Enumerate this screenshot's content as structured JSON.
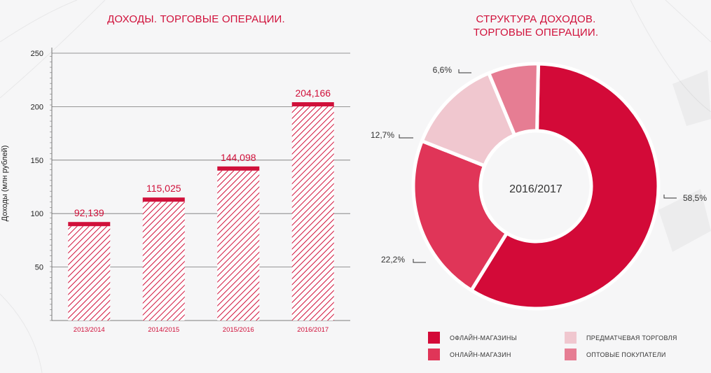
{
  "colors": {
    "accent": "#d0103a",
    "offline": "#d30a38",
    "online": "#e03558",
    "matchday": "#f0c7cf",
    "wholesale": "#e67d93"
  },
  "bar_chart": {
    "title": "ДОХОДЫ. ТОРГОВЫЕ ОПЕРАЦИИ.",
    "ylabel": "Доходы (млн рублей)"
  },
  "donut_chart": {
    "title": "СТРУКТУРА ДОХОДОВ.\nТОРГОВЫЕ ОПЕРАЦИИ.",
    "center_label": "2016/2017"
  },
  "legend": [
    {
      "label": "ОФЛАЙН-МАГАЗИНЫ",
      "color": "#d30a38"
    },
    {
      "label": "ОНЛАЙН-МАГАЗИН",
      "color": "#e03558"
    },
    {
      "label": "ПРЕДМАТЧЕВАЯ ТОРГОВЛЯ",
      "color": "#f0c7cf"
    },
    {
      "label": "ОПТОВЫЕ ПОКУПАТЕЛИ",
      "color": "#e67d93"
    }
  ],
  "chart_data": [
    {
      "type": "bar",
      "title": "ДОХОДЫ. ТОРГОВЫЕ ОПЕРАЦИИ.",
      "ylabel": "Доходы (млн рублей)",
      "xlabel": "",
      "categories": [
        "2013/2014",
        "2014/2015",
        "2015/2016",
        "2016/2017"
      ],
      "values": [
        92.139,
        115.025,
        144.098,
        204.166
      ],
      "value_labels": [
        "92,139",
        "115,025",
        "144,098",
        "204,166"
      ],
      "ylim": [
        0,
        250
      ],
      "yticks": [
        50,
        100,
        150,
        200,
        250
      ],
      "grid": true
    },
    {
      "type": "pie",
      "title": "СТРУКТУРА ДОХОДОВ.\nТОРГОВЫЕ ОПЕРАЦИИ.",
      "center_label": "2016/2017",
      "categories": [
        "ОФЛАЙН-МАГАЗИНЫ",
        "ОНЛАЙН-МАГАЗИН",
        "ПРЕДМАТЧЕВАЯ ТОРГОВЛЯ",
        "ОПТОВЫЕ ПОКУПАТЕЛИ"
      ],
      "values": [
        58.5,
        22.2,
        12.7,
        6.6
      ],
      "value_labels": [
        "58,5%",
        "22,2%",
        "12,7%",
        "6,6%"
      ],
      "legend_position": "bottom"
    }
  ]
}
